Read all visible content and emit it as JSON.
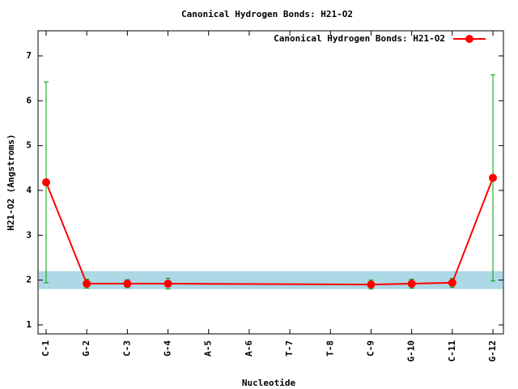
{
  "chart_data": {
    "type": "line",
    "title": "Canonical Hydrogen Bonds: H21-O2",
    "x_label": "Nucleotide",
    "y_label": "H21-O2 (Angstroms)",
    "categories": [
      "C-1",
      "G-2",
      "C-3",
      "G-4",
      "A-5",
      "A-6",
      "T-7",
      "T-8",
      "C-9",
      "G-10",
      "C-11",
      "G-12"
    ],
    "series": [
      {
        "name": "Canonical Hydrogen Bonds: H21-O2",
        "color": "#ff0000",
        "error_color": "#00a000",
        "values": [
          4.18,
          1.92,
          1.92,
          1.92,
          null,
          null,
          null,
          null,
          1.9,
          1.92,
          1.94,
          4.28
        ],
        "errors": [
          2.24,
          0.1,
          0.09,
          0.12,
          null,
          null,
          null,
          null,
          0.1,
          0.1,
          0.1,
          2.3
        ]
      }
    ],
    "band": {
      "range": [
        1.8,
        2.2
      ],
      "color": "#add8e6"
    },
    "ylim": [
      0.8,
      7.56
    ],
    "yticks": [
      1,
      2,
      3,
      4,
      5,
      6,
      7
    ],
    "legend": "top-right"
  }
}
